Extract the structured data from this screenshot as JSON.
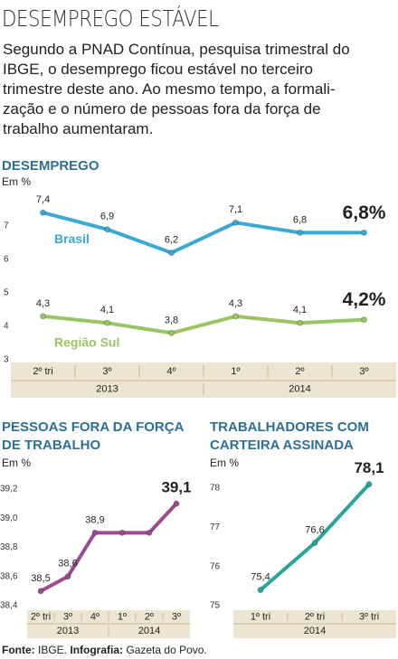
{
  "header": {
    "title": "DESEMPREGO ESTÁVEL",
    "intro": [
      "Segundo a PNAD Contínua, pesquisa trimestral do",
      "IBGE, o desemprego ficou estável no terceiro",
      "trimestre deste ano. Ao mesmo tempo, a formali-",
      "zação e o número de pessoas fora da força de",
      "trabalho aumentaram."
    ]
  },
  "chart_data": [
    {
      "type": "line",
      "title": "DESEMPREGO",
      "y_label": "Em %",
      "category_groups": [
        {
          "name": "2013",
          "categories": [
            "2º tri",
            "3º",
            "4º"
          ]
        },
        {
          "name": "2014",
          "categories": [
            "1º",
            "2º",
            "3º"
          ]
        }
      ],
      "series": [
        {
          "name": "Brasil",
          "color": "#3ba9d3",
          "values": [
            7.4,
            6.9,
            6.2,
            7.1,
            6.8,
            6.8
          ],
          "value_labels": [
            "7,4",
            "6,9",
            "6,2",
            "7,1",
            "6,8",
            "6,8%"
          ]
        },
        {
          "name": "Região Sul",
          "color": "#9bc563",
          "values": [
            4.3,
            4.1,
            3.8,
            4.3,
            4.1,
            4.2
          ],
          "value_labels": [
            "4,3",
            "4,1",
            "3,8",
            "4,3",
            "4,1",
            "4,2%"
          ]
        }
      ],
      "ylim": [
        3,
        8.5
      ],
      "yticks": [
        3,
        4,
        5,
        6,
        7
      ],
      "grid": false
    },
    {
      "type": "line",
      "title": "PESSOAS FORA DA FORÇA DE TRABALHO",
      "y_label": "Em %",
      "category_groups": [
        {
          "name": "2013",
          "categories": [
            "2º tri",
            "3º",
            "4º"
          ]
        },
        {
          "name": "2014",
          "categories": [
            "1º",
            "2º",
            "3º"
          ]
        }
      ],
      "values": [
        38.5,
        38.6,
        38.9,
        38.9,
        38.9,
        39.1
      ],
      "value_labels": [
        "38,5",
        "38,6",
        "38,9",
        null,
        null,
        "39,1"
      ],
      "color": "#9a4c8e",
      "ylim": [
        38.4,
        39.2
      ],
      "yticks": [
        {
          "value": 38.4,
          "label": "38,4"
        },
        {
          "value": 38.6,
          "label": "38,6"
        },
        {
          "value": 38.8,
          "label": "38,8"
        },
        {
          "value": 39.0,
          "label": "39,0"
        },
        {
          "value": 39.2,
          "label": "39,2"
        }
      ],
      "grid": false
    },
    {
      "type": "line",
      "title": "TRABALHADORES COM CARTEIRA ASSINADA",
      "y_label": "Em %",
      "category_groups": [
        {
          "name": "2014",
          "categories": [
            "1º tri",
            "2º tri",
            "3º tri"
          ]
        }
      ],
      "values": [
        75.4,
        76.6,
        78.1
      ],
      "value_labels": [
        "75,4",
        "76,6",
        "78,1"
      ],
      "color": "#2aa59b",
      "ylim": [
        75,
        78
      ],
      "yticks": [
        75,
        76,
        77,
        78
      ],
      "grid": false
    }
  ],
  "footer": {
    "label1": "Fonte:",
    "text1": "IBGE.",
    "label2": "Infografia:",
    "text2": "Gazeta do Povo."
  }
}
